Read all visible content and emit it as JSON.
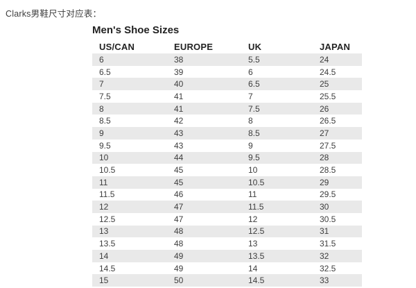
{
  "page": {
    "caption": "Clarks男鞋尺寸对应表："
  },
  "table": {
    "title": "Men's Shoe Sizes",
    "columns": [
      "US/CAN",
      "EUROPE",
      "UK",
      "JAPAN"
    ],
    "rows": [
      [
        "6",
        "38",
        "5.5",
        "24"
      ],
      [
        "6.5",
        "39",
        "6",
        "24.5"
      ],
      [
        "7",
        "40",
        "6.5",
        "25"
      ],
      [
        "7.5",
        "41",
        "7",
        "25.5"
      ],
      [
        "8",
        "41",
        "7.5",
        "26"
      ],
      [
        "8.5",
        "42",
        "8",
        "26.5"
      ],
      [
        "9",
        "43",
        "8.5",
        "27"
      ],
      [
        "9.5",
        "43",
        "9",
        "27.5"
      ],
      [
        "10",
        "44",
        "9.5",
        "28"
      ],
      [
        "10.5",
        "45",
        "10",
        "28.5"
      ],
      [
        "11",
        "45",
        "10.5",
        "29"
      ],
      [
        "11.5",
        "46",
        "11",
        "29.5"
      ],
      [
        "12",
        "47",
        "11.5",
        "30"
      ],
      [
        "12.5",
        "47",
        "12",
        "30.5"
      ],
      [
        "13",
        "48",
        "12.5",
        "31"
      ],
      [
        "13.5",
        "48",
        "13",
        "31.5"
      ],
      [
        "14",
        "49",
        "13.5",
        "32"
      ],
      [
        "14.5",
        "49",
        "14",
        "32.5"
      ],
      [
        "15",
        "50",
        "14.5",
        "33"
      ]
    ],
    "striping": "odd-rows-gray"
  },
  "colors": {
    "page_bg": "#ffffff",
    "row_alt": "#e9e9e9",
    "text": "#3d3d3d",
    "heading": "#222222"
  }
}
